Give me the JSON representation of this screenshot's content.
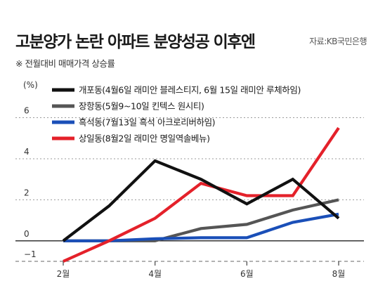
{
  "title": "고분양가 논란 아파트 분양성공 이후엔",
  "source": "자료:KB국민은행",
  "subtitle": "※ 전월대비 매매가격 상승률",
  "unit": "(%)",
  "chart_data": {
    "type": "line",
    "x": [
      2,
      3,
      4,
      5,
      6,
      7,
      8
    ],
    "xticks": [
      2,
      4,
      6,
      8
    ],
    "xtick_labels": [
      "2월",
      "4월",
      "6월",
      "8월"
    ],
    "ylim": [
      -1,
      6.6
    ],
    "yticks": [
      -1,
      0,
      2,
      4,
      6
    ],
    "ytick_labels": [
      "−1",
      "0",
      "2",
      "4",
      "6"
    ],
    "legend_position": "top-right",
    "series": [
      {
        "name": "개포동(4월6일 래미안 블레스티지, 6월 15일 래미안 루체하임)",
        "color": "#111111",
        "x": [
          2,
          3,
          4,
          5,
          6,
          7,
          8
        ],
        "values": [
          0,
          1.7,
          3.9,
          3.0,
          1.8,
          3.0,
          1.1
        ]
      },
      {
        "name": "장항동(5월9~10일 킨텍스 원시티)",
        "color": "#555555",
        "x": [
          2,
          3,
          4,
          5,
          6,
          7,
          8
        ],
        "values": [
          0,
          0,
          0,
          0.6,
          0.8,
          1.5,
          2.0
        ]
      },
      {
        "name": "흑석동(7월13일 흑석 아크로리버하임)",
        "color": "#1a4fb8",
        "x": [
          2,
          3,
          4,
          5,
          6,
          7,
          8
        ],
        "values": [
          0,
          0,
          0.1,
          0.15,
          0.15,
          0.9,
          1.3
        ]
      },
      {
        "name": "상일동(8월2일 래미안 명일역솔베뉴)",
        "color": "#e4212a",
        "x": [
          2,
          3,
          4,
          5,
          6,
          7,
          8
        ],
        "values": [
          -1.0,
          0,
          1.1,
          2.8,
          2.2,
          2.2,
          5.5
        ]
      }
    ]
  }
}
